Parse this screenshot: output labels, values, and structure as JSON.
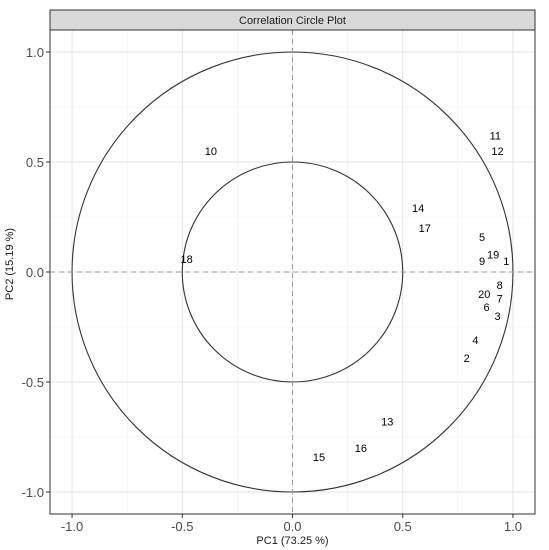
{
  "chart_data": {
    "type": "scatter",
    "title": "Correlation Circle Plot",
    "xlabel": "PC1 (73.25 %)",
    "ylabel": "PC2 (15.19 %)",
    "xlim": [
      -1.1,
      1.1
    ],
    "ylim": [
      -1.1,
      1.1
    ],
    "x_ticks": [
      "-1.0",
      "-0.5",
      "0.0",
      "0.5",
      "1.0"
    ],
    "y_ticks": [
      "-1.0",
      "-0.5",
      "0.0",
      "0.5",
      "1.0"
    ],
    "circles": [
      1.0,
      0.5
    ],
    "reference_lines": "dashed lines at x = 0 and y = 0",
    "grid": true,
    "points": [
      {
        "label": "1",
        "x": 0.97,
        "y": 0.05
      },
      {
        "label": "2",
        "x": 0.79,
        "y": -0.39
      },
      {
        "label": "3",
        "x": 0.93,
        "y": -0.2
      },
      {
        "label": "4",
        "x": 0.83,
        "y": -0.31
      },
      {
        "label": "5",
        "x": 0.86,
        "y": 0.16
      },
      {
        "label": "6",
        "x": 0.88,
        "y": -0.16
      },
      {
        "label": "7",
        "x": 0.94,
        "y": -0.12
      },
      {
        "label": "8",
        "x": 0.94,
        "y": -0.06
      },
      {
        "label": "9",
        "x": 0.86,
        "y": 0.05
      },
      {
        "label": "10",
        "x": -0.37,
        "y": 0.55
      },
      {
        "label": "11",
        "x": 0.92,
        "y": 0.62
      },
      {
        "label": "12",
        "x": 0.93,
        "y": 0.55
      },
      {
        "label": "13",
        "x": 0.43,
        "y": -0.68
      },
      {
        "label": "14",
        "x": 0.57,
        "y": 0.29
      },
      {
        "label": "15",
        "x": 0.12,
        "y": -0.84
      },
      {
        "label": "16",
        "x": 0.31,
        "y": -0.8
      },
      {
        "label": "17",
        "x": 0.6,
        "y": 0.2
      },
      {
        "label": "18",
        "x": -0.48,
        "y": 0.06
      },
      {
        "label": "19",
        "x": 0.91,
        "y": 0.08
      },
      {
        "label": "20",
        "x": 0.87,
        "y": -0.1
      }
    ]
  }
}
